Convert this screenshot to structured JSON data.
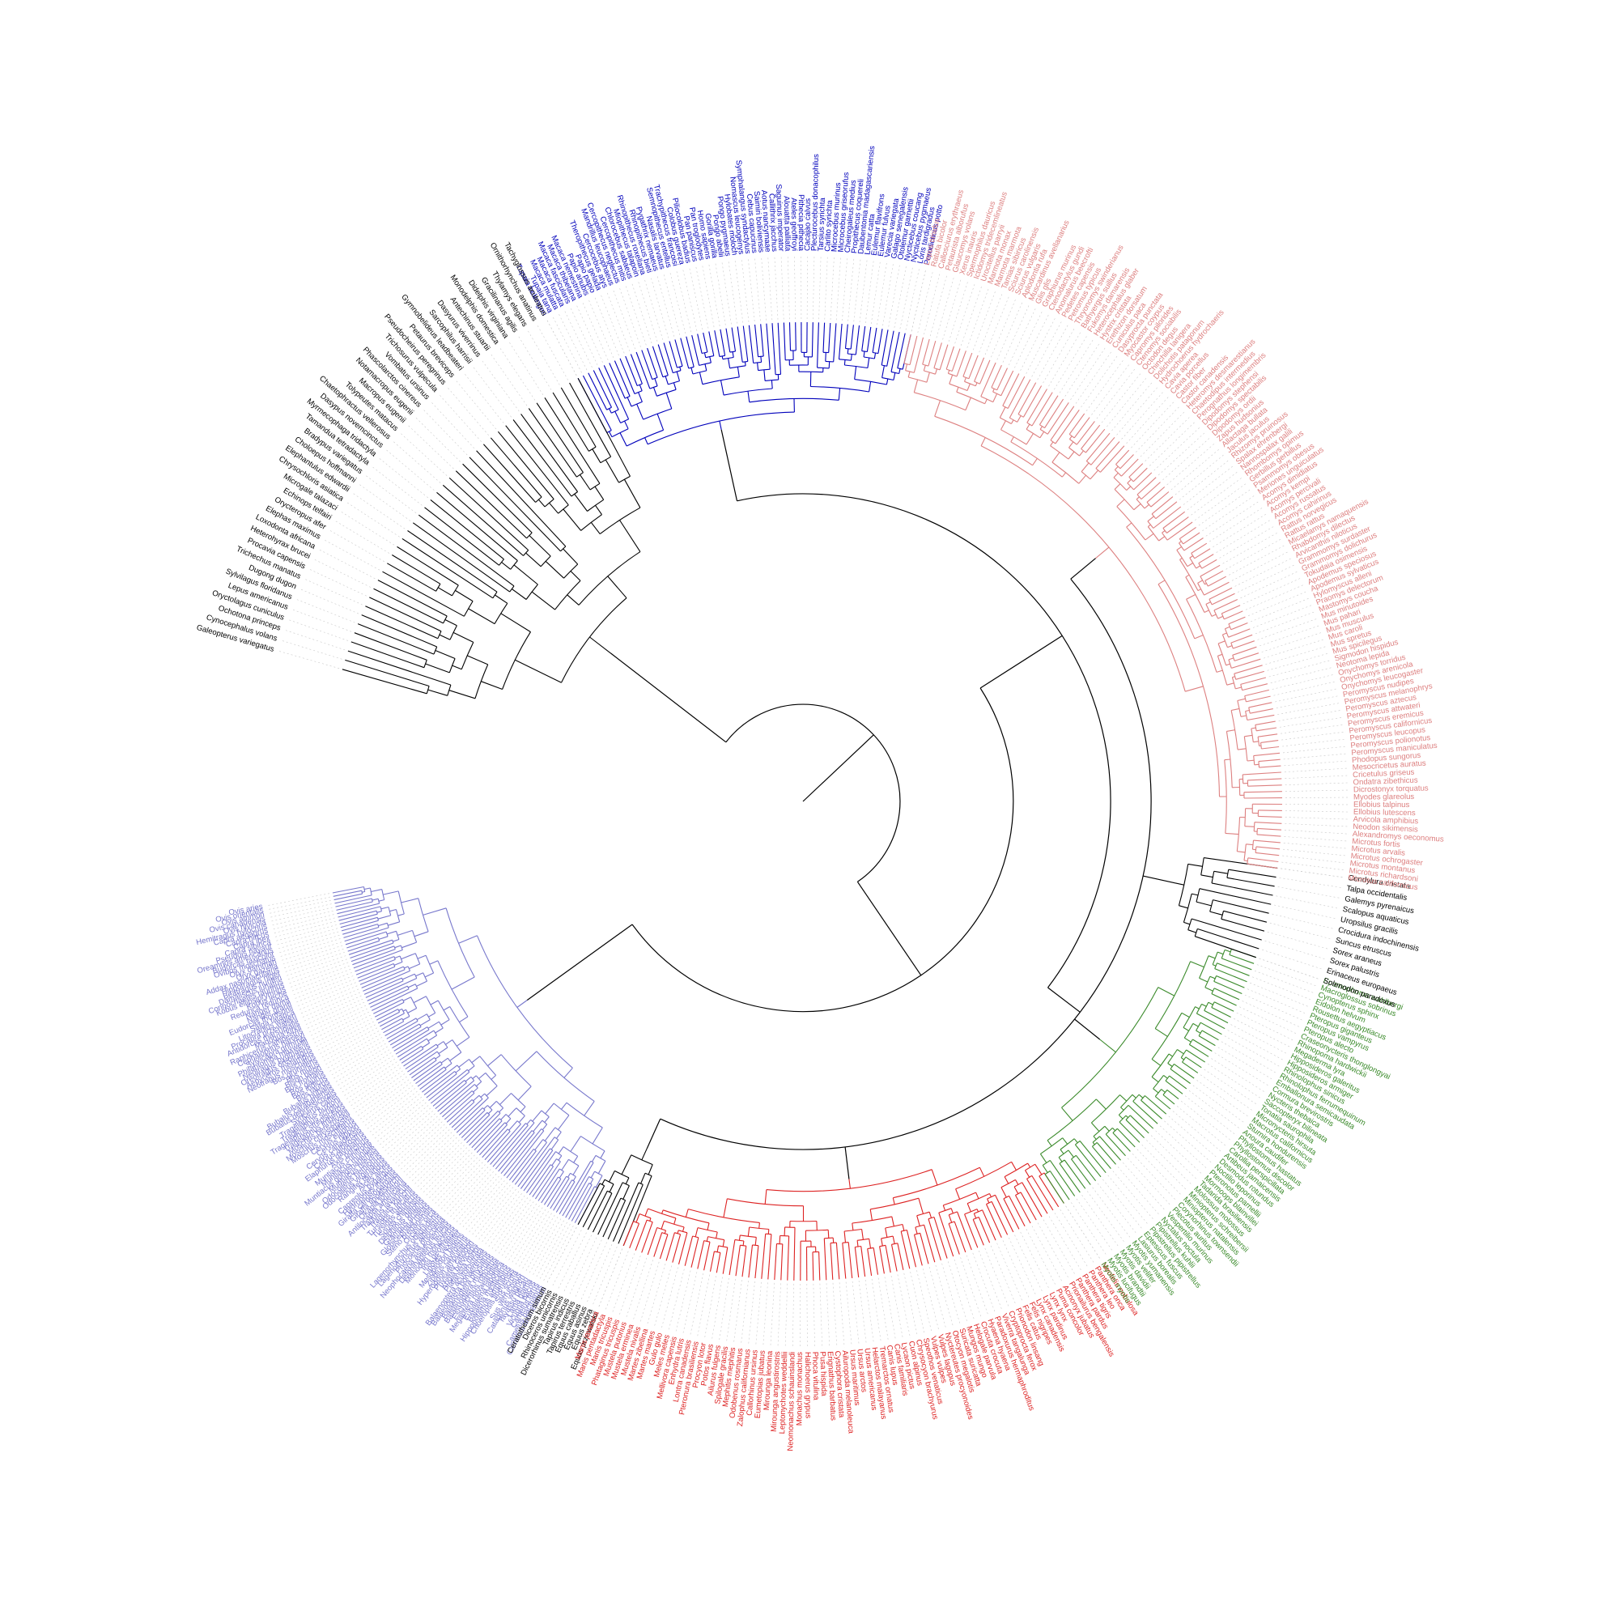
{
  "colors": {
    "primates": "#0000bb",
    "rodents": "#dd8080",
    "eulipotyphla": "#000000",
    "bats": "#3a8a2a",
    "carnivores": "#dd2222",
    "perissodactyla": "#000000",
    "artiodactyla": "#7777cc",
    "basal": "#000000",
    "branch": "#000000",
    "guide": "#c8c8c8"
  },
  "clades": [
    {
      "key": "primates",
      "color_key": "primates",
      "taxa": [
        "Tupaia belangeri",
        "Tupaia tana",
        "Macaca mulatta",
        "Macaca fuscata",
        "Macaca fascicularis",
        "Macaca thibetana",
        "Macaca nemestrina",
        "Papio anubis",
        "Papio papio",
        "Theropithecus gelada",
        "Cercocebus atys",
        "Mandrillus leucophaeus",
        "Cercopithecus neglectus",
        "Cercopithecus mitis",
        "Chlorocebus sabaeus",
        "Miopithecus talapoin",
        "Rhinopithecus roxellana",
        "Rhinopithecus bieti",
        "Pygathrix nemaeus",
        "Nasalis larvatus",
        "Semnopithecus entellus",
        "Trachypithecus francoisi",
        "Colobus guereza",
        "Piliocolobus badius",
        "Pan paniscus",
        "Pan troglodytes",
        "Homo sapiens",
        "Gorilla gorilla",
        "Pongo abelii",
        "Pongo pygmaeus",
        "Hylobates moloch",
        "Nomascus leucogenys",
        "Symphalangus syndactylus",
        "Cebus capucinus",
        "Saimiri boliviensis",
        "Aotus nancymaae",
        "Callithrix jacchus",
        "Saguinus imperator",
        "Alouatta palliata",
        "Ateles geoffroyi",
        "Pithecia pithecia",
        "Cacajao calvus",
        "Plecturocebus donacophilus",
        "Tarsius syrichta",
        "Carlito syrichta",
        "Microcebus murinus",
        "Microcebus griseorufus",
        "Cheirogaleus medius",
        "Propithecus coquereli",
        "Daubentonia madagascariensis",
        "Lemur catta",
        "Eulemur flavifrons",
        "Eulemur fulvus",
        "Varecia variegata",
        "Galago senegalensis",
        "Otolemur garnettii",
        "Nycticebus coucang",
        "Nycticebus pygmaeus",
        "Loris tardigradus",
        "Perodicticus potto"
      ]
    },
    {
      "key": "basal",
      "color_key": "basal",
      "taxa": [
        "Galeopterus variegatus",
        "Cynocephalus volans",
        "Ochotona princeps",
        "Oryctolagus cuniculus",
        "Lepus americanus",
        "Sylvilagus floridanus",
        "Dugong dugon",
        "Trichechus manatus",
        "Procavia capensis",
        "Heterohyrax brucei",
        "Loxodonta africana",
        "Elephas maximus",
        "Orycteropus afer",
        "Echinops telfairi",
        "Microgale talazaci",
        "Chrysochloris asiatica",
        "Elephantulus edwardii",
        "Choloepus hoffmanni",
        "Bradypus variegatus",
        "Tamandua tetradactyla",
        "Myrmecophaga tridactyla",
        "Dasypus novemcinctus",
        "Chaetophractus vellerosus",
        "Tolypeutes matacus",
        "Macropus eugenii",
        "Notamacropus eugenii",
        "Phascolarctos cinereus",
        "Vombatus ursinus",
        "Trichosurus vulpecula",
        "Pseudocheirus peregrinus",
        "Petaurus breviceps",
        "Gymnobelideus leadbeateri",
        "Sarcophilus harrisii",
        "Dasyurus viverrinus",
        "Antechinus stuartii",
        "Monodelphis domestica",
        "Didelphis virginiana",
        "Gracilinanus agilis",
        "Thylamys elegans",
        "Ornithorhynchus anatinus",
        "Tachyglossus aculeatus"
      ]
    },
    {
      "key": "artiodactyla",
      "color_key": "artiodactyla",
      "taxa": [
        "Ovis aries",
        "Ovis orientalis",
        "Ovis ammon",
        "Ovis canadensis",
        "Ovis nivicola",
        "Hemitragus hylocrius",
        "Capra aegagrus",
        "Capra hircus",
        "Capra ibex",
        "Capra sibirica",
        "Pseudois nayaur",
        "Oreamnos americanus",
        "Budorcas taxicolor",
        "Ovibos moschatus",
        "Oryx dammah",
        "Oryx gazella",
        "Addax nasomaculatus",
        "Hippotragus niger",
        "Beatragus hunteri",
        "Damaliscus lunatus",
        "Connochaetes taurinus",
        "Kobus ellipsiprymnus",
        "Kobus leche",
        "Redunca redunca",
        "Nanger dama",
        "Nanger granti",
        "Eudorcas thomsonii",
        "Saiga tatarica",
        "Litocranius walleri",
        "Procapra przewalskii",
        "Antidorcas marsupialis",
        "Madoqua kirkii",
        "Raphicerus campestris",
        "Cephalophus harveyi",
        "Sylvicapra grimmia",
        "Philantomba maxwellii",
        "Neotragus pygmaeus",
        "Oreotragus oreotragus",
        "Aepyceros melampus",
        "Neotragus moschatus",
        "Bos grunniens",
        "Bos mutus",
        "Bison bison",
        "Bos frontalis",
        "Bos gaurus",
        "Bos indicus",
        "Bos taurus",
        "Bubalus bubalis",
        "Bubalus carabanensis",
        "Bubalus depressicornis",
        "Syncerus caffer",
        "Tragelaphus buxtoni",
        "Tragelaphus scriptus",
        "Tragelaphus strepsiceros",
        "Tragelaphus imberbis",
        "Moschus berezovskii",
        "Moschus chrysogaster",
        "Moschus moschiferus",
        "Cervus elaphus",
        "Cervus nippon",
        "Cervus canadensis",
        "Cervus albirostris",
        "Elaphurus davidianus",
        "Axis porcinus",
        "Muntiacus crinifrons",
        "Muntiacus muntjak",
        "Muntiacus gongshanensis",
        "Muntiacus reevesi",
        "Odocoileus hemionus",
        "Odocoileus virginianus",
        "Rangifer tarandus",
        "Alces alces",
        "Capreolus pygargus",
        "Hydropotes inermis",
        "Giraffa camelopardalis",
        "Giraffa tippelskirchi",
        "Okapia johnstoni",
        "Antilocapra americana",
        "Tragulus javanicus",
        "Tragulus kanchil",
        "Tursiops truncatus",
        "Tursiops aduncus",
        "Sousa chinensis",
        "Delphinus delphis",
        "Grampus griseus",
        "Globicephala melas",
        "Steno bredanensis",
        "Orcinus orca",
        "Lagenorhynchus obliquidens",
        "Lagenorhynchus albirostris",
        "Phocoena phocoena",
        "Neophocaena asiaeorientalis",
        "Delphinapterus leucas",
        "Monodon monoceros",
        "Inia geoffrensis",
        "Lipotes vexillifer",
        "Mesoplodon bidens",
        "Ziphius cavirostris",
        "Hyperoodon ampullatus",
        "Physeter catodon",
        "Kogia breviceps",
        "Platanista minor",
        "Balaenoptera acutorostrata",
        "Balaenoptera bonaerensis",
        "Balaenoptera physalus",
        "Balaenoptera musculus",
        "Eschrichtius robustus",
        "Megaptera novaeangliae",
        "Eubalaena japonica",
        "Balaena mysticetus",
        "Hippopotamus amphibius",
        "Choeropsis liberiensis",
        "Sus scrofa",
        "Sus verrucosus",
        "Catagonus wagneri",
        "Tayassu pecari",
        "Lama glama",
        "Vicugna pacos",
        "Camelus ferus",
        "Camelus bactrianus",
        "Camelus dromedarius"
      ]
    },
    {
      "key": "perissodactyla",
      "color_key": "perissodactyla",
      "taxa": [
        "Ceratotherium simum",
        "Diceros bicornis",
        "Rhinoceros unicornis",
        "Dicerorhinus sumatrensis",
        "Tapirus indicus",
        "Tapirus terrestris",
        "Equus caballus",
        "Equus asinus",
        "Equus zebra",
        "Equus przewalskii"
      ]
    },
    {
      "key": "carnivores",
      "color_key": "carnivores",
      "taxa": [
        "Manis javanica",
        "Manis pentadactyla",
        "Manis tricuspis",
        "Phataginus tricuspis",
        "Mustela putorius",
        "Mustela erminea",
        "Mustela nivalis",
        "Martes zibellina",
        "Martes martes",
        "Gulo gulo",
        "Meles meles",
        "Mellivora capensis",
        "Enhydra lutris",
        "Lontra canadensis",
        "Pteronura brasiliensis",
        "Procyon lotor",
        "Potos flavus",
        "Ailurus fulgens",
        "Spilogale gracilis",
        "Mephitis mephitis",
        "Odobenus rosmarus",
        "Zalophus californianus",
        "Callorhinus ursinus",
        "Eumetopias jubatus",
        "Mirounga leonina",
        "Mirounga angustirostris",
        "Leptonychotes weddellii",
        "Neomonachus schauinslandi",
        "Monachus monachus",
        "Halichoerus grypus",
        "Phoca vitulina",
        "Pusa hispida",
        "Erignathus barbatus",
        "Cystophora cristata",
        "Ailuropoda melanoleuca",
        "Ursus maritimus",
        "Ursus arctos",
        "Ursus americanus",
        "Helarctos malayanus",
        "Tremarctos ornatus",
        "Canis lupus",
        "Canis familiaris",
        "Lycaon pictus",
        "Cuon alpinus",
        "Chrysocyon brachyurus",
        "Speothos venaticus",
        "Vulpes vulpes",
        "Vulpes lagopus",
        "Nyctereutes procyonoides",
        "Otocyon megalotis",
        "Suricata suricatta",
        "Mungos mungo",
        "Helogale parvula",
        "Crocuta crocuta",
        "Hyaena hyaena",
        "Paradoxurus hermaphroditus",
        "Viverra tangalunga",
        "Cryptoprocta ferox",
        "Prionodon linsang",
        "Felis catus",
        "Felis nigripes",
        "Lynx canadensis",
        "Lynx pardinus",
        "Lynx lynx",
        "Puma concolor",
        "Acinonyx jubatus",
        "Prionailurus bengalensis",
        "Panthera pardus",
        "Panthera tigris",
        "Panthera leo",
        "Panthera onca",
        "Neofelis nebulosa"
      ]
    },
    {
      "key": "bats",
      "color_key": "bats",
      "taxa": [
        "Myotis myotis",
        "Myotis lucifugus",
        "Myotis brandtii",
        "Myotis davidii",
        "Myotis velifer",
        "Myotis yumanensis",
        "Lasiurus borealis",
        "Eptesicus fuscus",
        "Pipistrellus pipistrellus",
        "Pipistrellus kuhlii",
        "Nyctalus noctula",
        "Vespertilio murinus",
        "Plecotus auritus",
        "Corynorhinus townsendii",
        "Miniopterus natalensis",
        "Miniopterus schreibersii",
        "Molossus molossus",
        "Tadarida brasiliensis",
        "Mormoops blainvillei",
        "Pteronotus parnellii",
        "Noctilio leporinus",
        "Desmodus rotundus",
        "Artibeus jamaicensis",
        "Carollia perspicillata",
        "Phyllostomus discolor",
        "Phyllostomus hastatus",
        "Anoura caudifer",
        "Sturnira hondurensis",
        "Macrotus californicus",
        "Micronycteris hirsuta",
        "Tonatia saurophila",
        "Saccopteryx bilineata",
        "Nycteris thebaica",
        "Cormura brevirostris",
        "Emballonura semicaudata",
        "Rhinolophus ferrumequinum",
        "Rhinolophus sinicus",
        "Hipposideros armiger",
        "Hipposideros galeritus",
        "Megaderma lyra",
        "Rhinopoma hardwickii",
        "Craseonycteris thonglongyai",
        "Pteropus alecto",
        "Pteropus vampyrus",
        "Pteropus giganteus",
        "Rousettus aegyptiacus",
        "Eidolon helvum",
        "Cynopterus sphinx",
        "Macroglossus sobrinus",
        "Epomophorus wahlbergi"
      ]
    },
    {
      "key": "eulipotyphla",
      "color_key": "eulipotyphla",
      "taxa": [
        "Solenodon paradoxus",
        "Erinaceus europaeus",
        "Sorex palustris",
        "Sorex araneus",
        "Suncus etruscus",
        "Crocidura indochinensis",
        "Uropsilus gracilis",
        "Scalopus aquaticus",
        "Galemys pyrenaicus",
        "Talpa occidentalis",
        "Condylura cristata"
      ]
    },
    {
      "key": "rodents",
      "color_key": "rodents",
      "taxa": [
        "Microtus californicus",
        "Microtus richardsoni",
        "Microtus montanus",
        "Microtus ochrogaster",
        "Microtus arvalis",
        "Microtus fortis",
        "Alexandromys oeconomus",
        "Neodon sikimensis",
        "Arvicola amphibius",
        "Ellobius lutescens",
        "Ellobius talpinus",
        "Myodes glareolus",
        "Dicrostonyx torquatus",
        "Ondatra zibethicus",
        "Cricetulus griseus",
        "Mesocricetus auratus",
        "Phodopus sungorus",
        "Peromyscus maniculatus",
        "Peromyscus polionotus",
        "Peromyscus leucopus",
        "Peromyscus californicus",
        "Peromyscus eremicus",
        "Peromyscus attwateri",
        "Peromyscus aztecus",
        "Peromyscus melanophrys",
        "Peromyscus nudipes",
        "Onychomys leucogaster",
        "Onychomys arenicola",
        "Onychomys torridus",
        "Neotoma lepida",
        "Sigmodon hispidus",
        "Mus spicilegus",
        "Mus spretus",
        "Mus caroli",
        "Mus musculus",
        "Mus pahari",
        "Mus minutoides",
        "Mastomys coucha",
        "Praomys delectorum",
        "Hylomyscus alleni",
        "Apodemus sylvaticus",
        "Apodemus speciosus",
        "Tokudaia osimensis",
        "Grammomys dolichurus",
        "Grammomys surdaster",
        "Arvicanthis niloticus",
        "Rhabdomys dilectus",
        "Micaelamys namaquensis",
        "Rattus rattus",
        "Rattus norvegicus",
        "Acomys cahirinus",
        "Acomys russatus",
        "Acomys percivali",
        "Acomys kempi",
        "Acomys dimidiatus",
        "Meriones unguiculatus",
        "Psammomys obesus",
        "Gerbillus gerbillus",
        "Rhombomys opimus",
        "Nannospalax galili",
        "Spalax ehrenbergi",
        "Rhizomys pruinosus",
        "Jaculus jaculus",
        "Allactaga bullata",
        "Zapus hudsonius",
        "Dipodomys ordii",
        "Dipodomys spectabilis",
        "Dipodomys stephensi",
        "Perognathus longimembris",
        "Chaetodipus intermedius",
        "Heteromys desmarestianus",
        "Castor canadensis",
        "Castor fiber",
        "Cavia porcellus",
        "Cavia aperea",
        "Hydrochoerus hydrochaeris",
        "Dolichotis patagonum",
        "Chinchilla lanigera",
        "Octodon degus",
        "Ctenomys sociabilis",
        "Capromys pilorides",
        "Myocastor coypus",
        "Dasyprocta punctata",
        "Cuniculus paca",
        "Erethizon dorsatum",
        "Hystrix cristata",
        "Heterocephalus glaber",
        "Fukomys damarensis",
        "Bathyergus suillus",
        "Thryonomys swinderianus",
        "Petromus typicus",
        "Pedetes capensis",
        "Anomalurus beecrofti",
        "Ctenodactylus gundi",
        "Graphiurus murinus",
        "Glis glis",
        "Muscardinus avellanarius",
        "Aplodontia rufa",
        "Sciurus vulgaris",
        "Sciurus carolinensis",
        "Tamias sibiricus",
        "Marmota marmota",
        "Marmota monax",
        "Urocitellus parryii",
        "Ictidomys tridecemlineatus",
        "Spermophilus dauricus",
        "Xerus inauris",
        "Glaucomys volans",
        "Petaurista alborufus",
        "Callosciurus erythraeus",
        "Ratufa bicolor",
        "Lepus timidus"
      ]
    }
  ]
}
